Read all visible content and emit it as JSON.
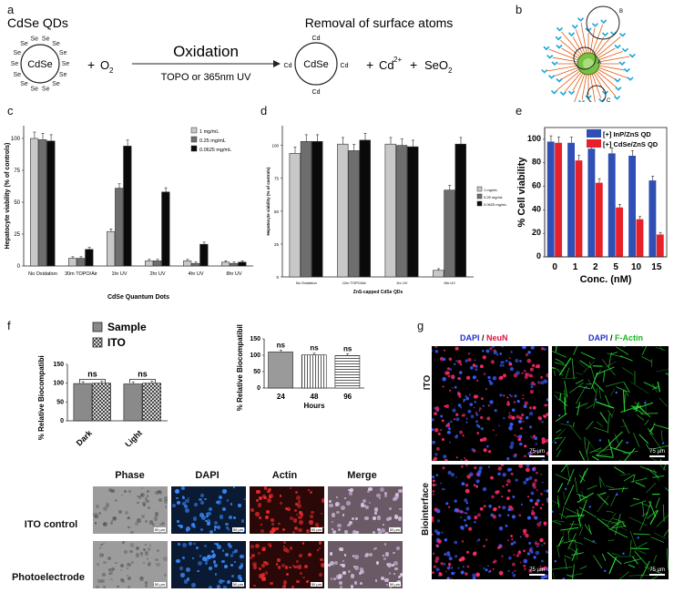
{
  "panels": {
    "a": "a",
    "b": "b",
    "c": "c",
    "d": "d",
    "e": "e",
    "f": "f",
    "g": "g"
  },
  "panel_a": {
    "qd_title": "CdSe QDs",
    "core": "CdSe",
    "se_label": "Se",
    "cd_label": "Cd",
    "o2": "O",
    "o2_sub": "2",
    "plus": "+",
    "arrow_label": "Oxidation",
    "arrow_sub": "TOPO or 365nm UV",
    "removal_title": "Removal of surface atoms",
    "cd2": "Cd",
    "cd2_sup": "2+",
    "seo2": "SeO",
    "seo2_sub": "2"
  },
  "panel_b": {
    "label_a": "A",
    "label_b": "B",
    "label_c": "C"
  },
  "panel_f_text": {
    "legend_sample": "Sample",
    "legend_ito": "ITO",
    "ns": "ns",
    "cols": [
      "Phase",
      "DAPI",
      "Actin",
      "Merge"
    ],
    "rows": [
      "ITO control",
      "Photoelectrode"
    ],
    "scale": "50 µm"
  },
  "panel_g": {
    "header1_a": "DAPI",
    "header1_sep": " / ",
    "header1_b": "NeuN",
    "header2_a": "DAPI",
    "header2_sep": " / ",
    "header2_b": "F-Actin",
    "row1": "ITO",
    "row2": "Biointerface",
    "scale": "75 µm"
  },
  "colors": {
    "blue_bar": "#2f4fb5",
    "red_bar": "#e8202a",
    "dapi": "#3a5cff",
    "neun": "#ff2a6a",
    "actin_green": "#2ee83a"
  },
  "chart_data": [
    {
      "id": "c",
      "type": "bar",
      "categories": [
        "No Oxidation",
        "30m TOPO/Air",
        "1hr UV",
        "2hr UV",
        "4hr UV",
        "8hr UV"
      ],
      "series": [
        {
          "name": "1 mg/mL",
          "values": [
            100,
            6,
            27,
            4,
            4,
            3
          ]
        },
        {
          "name": "0.25 mg/mL",
          "values": [
            99,
            6,
            61,
            4,
            2,
            2
          ]
        },
        {
          "name": "0.0625 mg/mL",
          "values": [
            98,
            13,
            94,
            58,
            17,
            3
          ]
        }
      ],
      "xlabel": "CdSe Quantum Dots",
      "ylabel": "Hepatocyte viability (% of controls)",
      "yticks": [
        "0",
        "25",
        "50",
        "75",
        "100"
      ],
      "ylim": [
        0,
        110
      ]
    },
    {
      "id": "d",
      "type": "bar",
      "categories": [
        "No Oxidation",
        "12m TOPO/Air",
        "1hr UV",
        "8hr UV"
      ],
      "series": [
        {
          "name": "1 mg/mL",
          "values": [
            94,
            101,
            101,
            5
          ]
        },
        {
          "name": "0.25 mg/mL",
          "values": [
            103,
            96,
            100,
            66
          ]
        },
        {
          "name": "0.0625 mg/mL",
          "values": [
            103,
            104,
            99,
            101
          ]
        }
      ],
      "xlabel": "ZnS-capped CdSe QDs",
      "ylabel": "Hepatocyte viability (% of controls)",
      "yticks": [
        "0",
        "25",
        "50",
        "75",
        "100"
      ],
      "ylim": [
        0,
        115
      ]
    },
    {
      "id": "e",
      "type": "bar",
      "categories": [
        "0",
        "1",
        "2",
        "5",
        "10",
        "15"
      ],
      "series": [
        {
          "name": "[+] InP/ZnS QD",
          "values": [
            98,
            97,
            92,
            88,
            86,
            65
          ]
        },
        {
          "name": "[+] CdSe/ZnS QD",
          "values": [
            97,
            82,
            63,
            42,
            32,
            19
          ]
        }
      ],
      "xlabel": "Conc. (nM)",
      "ylabel": "% Cell viability",
      "yticks": [
        "0",
        "20",
        "40",
        "60",
        "80",
        "100"
      ],
      "ylim": [
        0,
        110
      ]
    },
    {
      "id": "f1",
      "type": "bar",
      "categories": [
        "Dark",
        "Light"
      ],
      "series": [
        {
          "name": "Sample",
          "values": [
            99,
            98
          ]
        },
        {
          "name": "ITO",
          "values": [
            100,
            100
          ]
        }
      ],
      "ylabel": "% Relative Biocompatibility",
      "yticks": [
        "0",
        "50",
        "100",
        "150"
      ],
      "ylim": [
        0,
        150
      ]
    },
    {
      "id": "f2",
      "type": "bar",
      "categories": [
        "24",
        "48",
        "96"
      ],
      "values": [
        110,
        101,
        99
      ],
      "xlabel": "Hours",
      "ylabel": "% Relative Biocompatibility",
      "yticks": [
        "0",
        "50",
        "100",
        "150"
      ],
      "ylim": [
        0,
        150
      ]
    }
  ]
}
